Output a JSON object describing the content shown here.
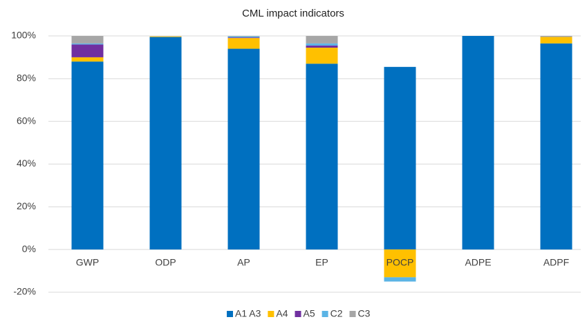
{
  "chart_data": {
    "type": "stacked_bar",
    "title": "CML impact indicators",
    "categories": [
      "GWP",
      "ODP",
      "AP",
      "EP",
      "POCP",
      "ADPE",
      "ADPF"
    ],
    "series": [
      {
        "name": "A1 A3",
        "color": "#0070c0",
        "values": [
          88,
          99.5,
          94,
          87,
          85.5,
          100,
          96.5
        ]
      },
      {
        "name": "A4",
        "color": "#ffc000",
        "values": [
          2,
          0.3,
          5,
          7.5,
          -13,
          0,
          3
        ]
      },
      {
        "name": "A5",
        "color": "#7030a0",
        "values": [
          6,
          0,
          0.3,
          1,
          0,
          0,
          0
        ]
      },
      {
        "name": "C2",
        "color": "#5bb4e5",
        "values": [
          0.5,
          0,
          0.5,
          1,
          -2,
          0,
          0
        ]
      },
      {
        "name": "C3",
        "color": "#a6a6a6",
        "values": [
          3.5,
          0,
          0.2,
          3.5,
          0,
          0,
          0.5
        ]
      }
    ],
    "ylim": [
      -20,
      100
    ],
    "yticks": [
      {
        "value": -20,
        "label": "-20%"
      },
      {
        "value": 0,
        "label": "0%"
      },
      {
        "value": 20,
        "label": "20%"
      },
      {
        "value": 40,
        "label": "40%"
      },
      {
        "value": 60,
        "label": "60%"
      },
      {
        "value": 80,
        "label": "80%"
      },
      {
        "value": 100,
        "label": "100%"
      }
    ],
    "grid": true,
    "legend": "bottom"
  }
}
